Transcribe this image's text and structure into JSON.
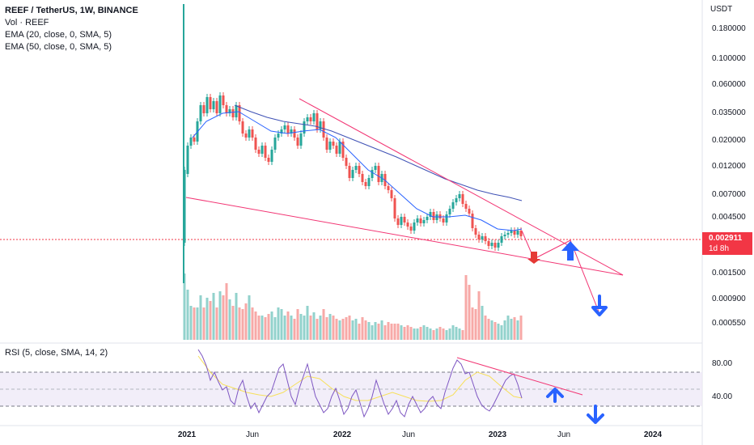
{
  "legend": {
    "symbol": "REEF / TetherUS, 1W, BINANCE",
    "volume": "Vol · REEF",
    "ema20": "EMA (20, close, 0, SMA, 5)",
    "ema50": "EMA (50, close, 0, SMA, 5)"
  },
  "rsi": {
    "label": "RSI (5, close, SMA, 14, 2)",
    "ticks": [
      "80.00",
      "40.00"
    ]
  },
  "price_axis": {
    "currency": "USDT",
    "ticks": [
      "0.180000",
      "0.100000",
      "0.060000",
      "0.035000",
      "0.020000",
      "0.012000",
      "0.007000",
      "0.004500",
      "0.001500",
      "0.000900",
      "0.000550"
    ]
  },
  "current_price": {
    "value": "0.002911",
    "countdown": "1d 8h"
  },
  "time_axis": [
    "2021",
    "Jun",
    "2022",
    "Jun",
    "2023",
    "Jun",
    "2024"
  ],
  "colors": {
    "up": "#26a69a",
    "down": "#ef5350",
    "ema20": "#2962ff",
    "ema50": "#3f51b5",
    "trendline": "#f23674",
    "rsi": "#7e57c2",
    "rsi_ma": "#f7e05a",
    "arrow_blue": "#2962ff",
    "arrow_red": "#e53935"
  },
  "icons": {
    "arrow_up": "arrow-up-icon",
    "arrow_down": "arrow-down-icon"
  }
}
